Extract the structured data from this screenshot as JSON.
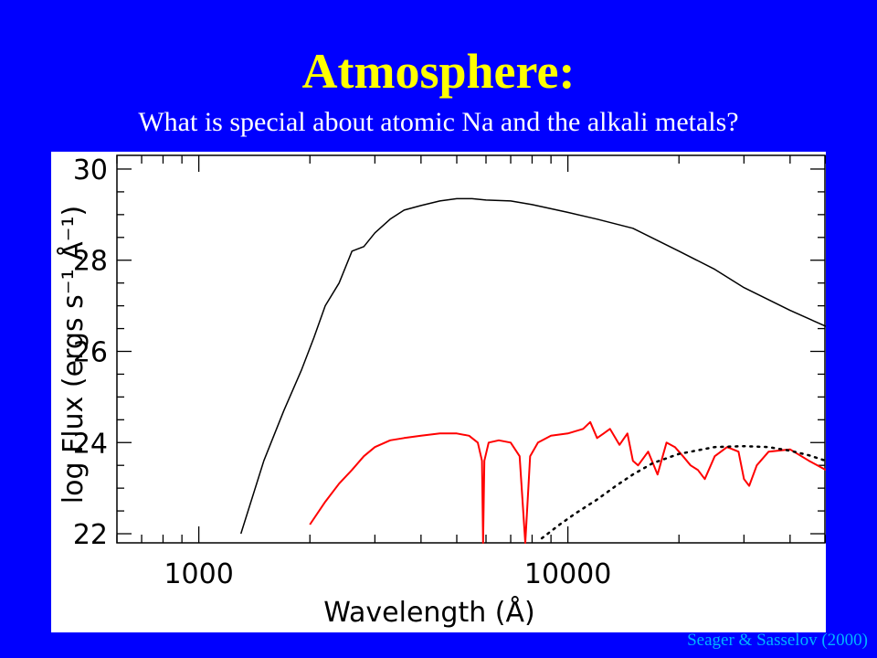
{
  "slide": {
    "title": "Atmosphere:",
    "subtitle": "What is special about atomic Na and the alkali metals?",
    "credit": "Seager & Sasselov (2000)",
    "colors": {
      "background": "#0000ff",
      "title": "#ffff00",
      "subtitle": "#ffffff",
      "credit": "#00b4ff"
    }
  },
  "chart_data": {
    "type": "line",
    "xlabel": "Wavelength (Å)",
    "ylabel": "log Flux (ergs s⁻¹ Å⁻¹)",
    "x_scale": "log",
    "xlim": [
      600,
      50000
    ],
    "ylim": [
      21.8,
      30.3
    ],
    "x_ticks": [
      {
        "value": 1000,
        "label": "1000"
      },
      {
        "value": 10000,
        "label": "10000"
      }
    ],
    "y_ticks": [
      {
        "value": 22,
        "label": "22"
      },
      {
        "value": 24,
        "label": "24"
      },
      {
        "value": 26,
        "label": "26"
      },
      {
        "value": 28,
        "label": "28"
      },
      {
        "value": 30,
        "label": "30"
      }
    ],
    "grid": false,
    "legend": "none",
    "series": [
      {
        "color": "#000000",
        "style": "solid",
        "x": [
          1300,
          1500,
          1700,
          1900,
          2050,
          2200,
          2400,
          2600,
          2800,
          3000,
          3300,
          3600,
          4000,
          4500,
          5000,
          5500,
          6000,
          7000,
          8000,
          10000,
          12000,
          15000,
          20000,
          25000,
          30000,
          40000,
          50000
        ],
        "y": [
          22.0,
          23.6,
          24.7,
          25.6,
          26.3,
          27.0,
          27.5,
          28.2,
          28.3,
          28.6,
          28.9,
          29.1,
          29.2,
          29.3,
          29.35,
          29.35,
          29.32,
          29.3,
          29.22,
          29.05,
          28.9,
          28.7,
          28.2,
          27.8,
          27.4,
          26.9,
          26.55
        ]
      },
      {
        "color": "#ff0000",
        "style": "solid",
        "x": [
          2000,
          2200,
          2400,
          2600,
          2800,
          3000,
          3300,
          3600,
          4000,
          4500,
          5000,
          5400,
          5700,
          5850,
          5893,
          5940,
          6100,
          6500,
          7000,
          7400,
          7665,
          7900,
          8300,
          9000,
          10000,
          11000,
          11500,
          12000,
          12500,
          13000,
          13800,
          14500,
          15000,
          15500,
          16500,
          17500,
          18500,
          19500,
          20500,
          21500,
          22500,
          23500,
          25000,
          27000,
          29000,
          30000,
          31000,
          32500,
          35000,
          40000,
          45000,
          50000
        ],
        "y": [
          22.2,
          22.7,
          23.1,
          23.4,
          23.7,
          23.9,
          24.05,
          24.1,
          24.15,
          24.2,
          24.2,
          24.15,
          24.0,
          23.6,
          21.8,
          23.6,
          24.0,
          24.05,
          24.0,
          23.7,
          21.8,
          23.7,
          24.0,
          24.15,
          24.2,
          24.3,
          24.45,
          24.1,
          24.2,
          24.3,
          23.95,
          24.2,
          23.6,
          23.5,
          23.8,
          23.3,
          24.0,
          23.9,
          23.7,
          23.5,
          23.4,
          23.2,
          23.7,
          23.9,
          23.8,
          23.2,
          23.05,
          23.5,
          23.8,
          23.85,
          23.6,
          23.4
        ]
      },
      {
        "color": "#000000",
        "style": "dotted",
        "x": [
          8500,
          9500,
          10500,
          12000,
          13500,
          15000,
          17000,
          20000,
          25000,
          30000,
          35000,
          40000,
          45000,
          50000
        ],
        "y": [
          21.9,
          22.2,
          22.45,
          22.75,
          23.05,
          23.3,
          23.55,
          23.75,
          23.9,
          23.92,
          23.9,
          23.82,
          23.72,
          23.6
        ]
      }
    ]
  }
}
